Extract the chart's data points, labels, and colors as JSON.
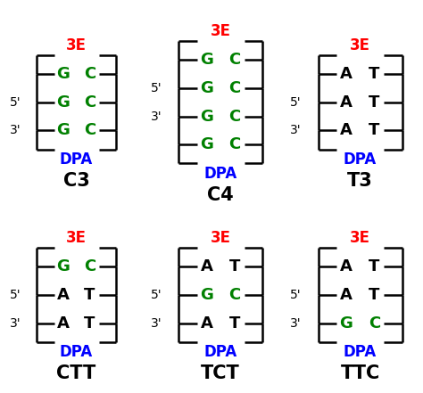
{
  "diagrams": [
    {
      "name": "C3",
      "rows": [
        {
          "label_left": null,
          "left": "G",
          "right": "C",
          "left_color": "green",
          "right_color": "green"
        },
        {
          "label_left": "5'",
          "left": "G",
          "right": "C",
          "left_color": "green",
          "right_color": "green"
        },
        {
          "label_left": "3'",
          "left": "G",
          "right": "C",
          "left_color": "green",
          "right_color": "green"
        }
      ],
      "top_label": "3E",
      "bottom_label": "DPA",
      "title": "C3"
    },
    {
      "name": "C4",
      "rows": [
        {
          "label_left": null,
          "left": "G",
          "right": "C",
          "left_color": "green",
          "right_color": "green"
        },
        {
          "label_left": "5'",
          "left": "G",
          "right": "C",
          "left_color": "green",
          "right_color": "green"
        },
        {
          "label_left": "3'",
          "left": "G",
          "right": "C",
          "left_color": "green",
          "right_color": "green"
        },
        {
          "label_left": null,
          "left": "G",
          "right": "C",
          "left_color": "green",
          "right_color": "green"
        }
      ],
      "top_label": "3E",
      "bottom_label": "DPA",
      "title": "C4"
    },
    {
      "name": "T3",
      "rows": [
        {
          "label_left": null,
          "left": "A",
          "right": "T",
          "left_color": "black",
          "right_color": "black"
        },
        {
          "label_left": "5'",
          "left": "A",
          "right": "T",
          "left_color": "black",
          "right_color": "black"
        },
        {
          "label_left": "3'",
          "left": "A",
          "right": "T",
          "left_color": "black",
          "right_color": "black"
        }
      ],
      "top_label": "3E",
      "bottom_label": "DPA",
      "title": "T3"
    },
    {
      "name": "CTT",
      "rows": [
        {
          "label_left": null,
          "left": "G",
          "right": "C",
          "left_color": "green",
          "right_color": "green"
        },
        {
          "label_left": "5'",
          "left": "A",
          "right": "T",
          "left_color": "black",
          "right_color": "black"
        },
        {
          "label_left": "3'",
          "left": "A",
          "right": "T",
          "left_color": "black",
          "right_color": "black"
        }
      ],
      "top_label": "3E",
      "bottom_label": "DPA",
      "title": "CTT"
    },
    {
      "name": "TCT",
      "rows": [
        {
          "label_left": null,
          "left": "A",
          "right": "T",
          "left_color": "black",
          "right_color": "black"
        },
        {
          "label_left": "5'",
          "left": "G",
          "right": "C",
          "left_color": "green",
          "right_color": "green"
        },
        {
          "label_left": "3'",
          "left": "A",
          "right": "T",
          "left_color": "black",
          "right_color": "black"
        }
      ],
      "top_label": "3E",
      "bottom_label": "DPA",
      "title": "TCT"
    },
    {
      "name": "TTC",
      "rows": [
        {
          "label_left": null,
          "left": "A",
          "right": "T",
          "left_color": "black",
          "right_color": "black"
        },
        {
          "label_left": "5'",
          "left": "A",
          "right": "T",
          "left_color": "black",
          "right_color": "black"
        },
        {
          "label_left": "3'",
          "left": "G",
          "right": "C",
          "left_color": "green",
          "right_color": "green"
        }
      ],
      "top_label": "3E",
      "bottom_label": "DPA",
      "title": "TTC"
    }
  ],
  "background_color": "#ffffff",
  "line_color": "black",
  "top_label_color": "red",
  "bottom_label_color": "blue",
  "title_fontsize": 15,
  "label_fontsize": 12,
  "base_fontsize": 13,
  "side_label_fontsize": 10
}
